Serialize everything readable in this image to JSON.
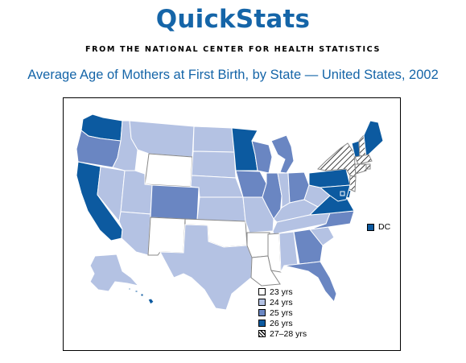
{
  "header": {
    "title": "QuickStats",
    "subtitle": "FROM THE NATIONAL CENTER FOR HEALTH STATISTICS"
  },
  "chart_data": {
    "type": "choropleth",
    "title": "Average Age of Mothers at First Birth, by State — United States, 2002",
    "legend": [
      {
        "label": "23 yrs",
        "color": "#ffffff",
        "pattern": "none"
      },
      {
        "label": "24 yrs",
        "color": "#b4c2e3",
        "pattern": "none"
      },
      {
        "label": "25 yrs",
        "color": "#6a86c2",
        "pattern": "none"
      },
      {
        "label": "26 yrs",
        "color": "#0c5aa0",
        "pattern": "none"
      },
      {
        "label": "27–28 yrs",
        "color": "#ffffff",
        "pattern": "hatch"
      }
    ],
    "dc_label": "DC",
    "states": {
      "WA": "26",
      "OR": "25",
      "CA": "26",
      "NV": "24",
      "ID": "24",
      "MT": "24",
      "WY": "23",
      "UT": "24",
      "AZ": "24",
      "CO": "25",
      "NM": "23",
      "ND": "24",
      "SD": "24",
      "NE": "24",
      "KS": "24",
      "OK": "23",
      "TX": "24",
      "MN": "26",
      "IA": "25",
      "MO": "24",
      "AR": "23",
      "LA": "23",
      "WI": "25",
      "IL": "25",
      "MI": "25",
      "IN": "24",
      "OH": "25",
      "KY": "24",
      "TN": "24",
      "MS": "23",
      "AL": "24",
      "GA": "25",
      "FL": "25",
      "SC": "24",
      "NC": "25",
      "VA": "26",
      "WV": "24",
      "PA": "26",
      "NY": "27-28",
      "VT": "26",
      "NH": "27-28",
      "ME": "26",
      "MA": "27-28",
      "RI": "27-28",
      "CT": "27-28",
      "NJ": "27-28",
      "DE": "26",
      "MD": "26",
      "DC": "26",
      "AK": "24",
      "HI": "26"
    }
  }
}
